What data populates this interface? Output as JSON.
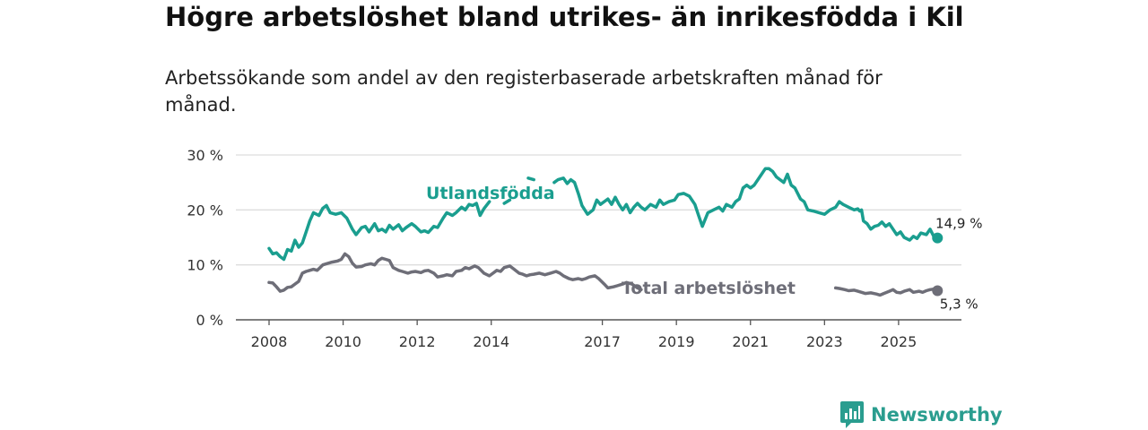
{
  "header": {
    "title": "Högre arbetslöshet bland utrikes- än inrikesfödda i Kil",
    "subtitle": "Arbetssökande som andel av den registerbaserade arbetskraften månad för månad."
  },
  "brand": {
    "name": "Newsworthy",
    "icon": "newsworthy-logo-icon"
  },
  "colors": {
    "foreign": "#1a9e8f",
    "total": "#6e6e78",
    "grid": "#dddddd",
    "axis": "#555555"
  },
  "chart_data": {
    "type": "line",
    "title": "Högre arbetslöshet bland utrikes- än inrikesfödda i Kil",
    "xlabel": "",
    "ylabel": "",
    "xlim": [
      2008.0,
      2025.85
    ],
    "ylim": [
      0,
      30
    ],
    "y_ticks": [
      0,
      10,
      20,
      30
    ],
    "y_tick_labels": [
      "0 %",
      "10 %",
      "20 %",
      "30 %"
    ],
    "x_ticks": [
      2008,
      2010,
      2012,
      2014,
      2017,
      2019,
      2021,
      2023,
      2025
    ],
    "x_tick_labels": [
      "2008",
      "2010",
      "2012",
      "2014",
      "2017",
      "2019",
      "2021",
      "2023",
      "2025"
    ],
    "grid": true,
    "legend": "inline labels",
    "series": [
      {
        "name": "Utlandsfödda",
        "label": "Utlandsfödda",
        "end_label": "14,9 %",
        "points": [
          [
            2008.0,
            13.0
          ],
          [
            2008.1,
            12.0
          ],
          [
            2008.2,
            12.2
          ],
          [
            2008.3,
            11.5
          ],
          [
            2008.4,
            11.0
          ],
          [
            2008.5,
            12.8
          ],
          [
            2008.6,
            12.5
          ],
          [
            2008.7,
            14.5
          ],
          [
            2008.8,
            13.2
          ],
          [
            2008.9,
            14.0
          ],
          [
            2009.0,
            16.0
          ],
          [
            2009.1,
            18.0
          ],
          [
            2009.2,
            19.5
          ],
          [
            2009.35,
            19.0
          ],
          [
            2009.45,
            20.3
          ],
          [
            2009.55,
            20.8
          ],
          [
            2009.65,
            19.5
          ],
          [
            2009.8,
            19.2
          ],
          [
            2009.95,
            19.5
          ],
          [
            2010.1,
            18.5
          ],
          [
            2010.25,
            16.5
          ],
          [
            2010.35,
            15.5
          ],
          [
            2010.5,
            16.8
          ],
          [
            2010.6,
            17.0
          ],
          [
            2010.7,
            16.0
          ],
          [
            2010.85,
            17.5
          ],
          [
            2010.95,
            16.2
          ],
          [
            2011.05,
            16.5
          ],
          [
            2011.15,
            16.0
          ],
          [
            2011.25,
            17.2
          ],
          [
            2011.35,
            16.5
          ],
          [
            2011.5,
            17.3
          ],
          [
            2011.6,
            16.2
          ],
          [
            2011.7,
            16.8
          ],
          [
            2011.85,
            17.5
          ],
          [
            2011.95,
            17.0
          ],
          [
            2012.1,
            16.0
          ],
          [
            2012.2,
            16.2
          ],
          [
            2012.3,
            15.9
          ],
          [
            2012.45,
            17.0
          ],
          [
            2012.55,
            16.8
          ],
          [
            2012.7,
            18.5
          ],
          [
            2012.8,
            19.5
          ],
          [
            2012.95,
            19.0
          ],
          [
            2013.05,
            19.5
          ],
          [
            2013.2,
            20.5
          ],
          [
            2013.3,
            20.0
          ],
          [
            2013.4,
            21.0
          ],
          [
            2013.5,
            20.8
          ],
          [
            2013.6,
            21.2
          ],
          [
            2013.7,
            19.0
          ],
          [
            2013.8,
            20.2
          ],
          [
            2013.95,
            21.5
          ]
        ],
        "segments": [
          [
            [
              2014.35,
              21.2
            ],
            [
              2014.5,
              21.8
            ]
          ],
          [
            [
              2015.0,
              25.8
            ],
            [
              2015.15,
              25.5
            ]
          ],
          [
            [
              2015.7,
              25.0
            ],
            [
              2015.8,
              25.5
            ],
            [
              2015.95,
              25.8
            ],
            [
              2016.05,
              24.8
            ],
            [
              2016.15,
              25.5
            ],
            [
              2016.25,
              25.0
            ],
            [
              2016.35,
              23.0
            ],
            [
              2016.45,
              20.8
            ],
            [
              2016.6,
              19.2
            ],
            [
              2016.75,
              20.0
            ],
            [
              2016.85,
              21.8
            ],
            [
              2016.95,
              21.0
            ],
            [
              2017.05,
              21.5
            ],
            [
              2017.15,
              22.0
            ],
            [
              2017.25,
              21.0
            ],
            [
              2017.35,
              22.3
            ],
            [
              2017.45,
              21.0
            ],
            [
              2017.55,
              20.0
            ],
            [
              2017.65,
              21.0
            ],
            [
              2017.75,
              19.5
            ],
            [
              2017.85,
              20.5
            ],
            [
              2017.95,
              21.2
            ],
            [
              2018.05,
              20.5
            ],
            [
              2018.15,
              20.0
            ],
            [
              2018.3,
              21.0
            ],
            [
              2018.45,
              20.5
            ],
            [
              2018.55,
              21.8
            ],
            [
              2018.65,
              21.0
            ],
            [
              2018.8,
              21.5
            ],
            [
              2018.95,
              21.8
            ],
            [
              2019.05,
              22.8
            ],
            [
              2019.2,
              23.0
            ],
            [
              2019.35,
              22.5
            ],
            [
              2019.5,
              21.0
            ],
            [
              2019.6,
              19.0
            ],
            [
              2019.7,
              17.0
            ],
            [
              2019.85,
              19.5
            ],
            [
              2020.0,
              20.0
            ],
            [
              2020.15,
              20.5
            ],
            [
              2020.25,
              19.8
            ],
            [
              2020.35,
              21.0
            ],
            [
              2020.5,
              20.5
            ],
            [
              2020.6,
              21.5
            ],
            [
              2020.7,
              22.0
            ],
            [
              2020.8,
              24.0
            ],
            [
              2020.9,
              24.5
            ],
            [
              2021.0,
              24.0
            ],
            [
              2021.1,
              24.5
            ],
            [
              2021.25,
              26.0
            ],
            [
              2021.4,
              27.5
            ],
            [
              2021.5,
              27.5
            ],
            [
              2021.6,
              27.0
            ],
            [
              2021.7,
              26.0
            ],
            [
              2021.8,
              25.5
            ],
            [
              2021.9,
              25.0
            ],
            [
              2022.0,
              26.5
            ],
            [
              2022.1,
              24.5
            ],
            [
              2022.2,
              24.0
            ],
            [
              2022.35,
              22.0
            ],
            [
              2022.45,
              21.5
            ],
            [
              2022.55,
              20.0
            ],
            [
              2022.7,
              19.8
            ],
            [
              2022.85,
              19.5
            ],
            [
              2023.0,
              19.2
            ],
            [
              2023.15,
              20.0
            ],
            [
              2023.3,
              20.5
            ],
            [
              2023.4,
              21.5
            ],
            [
              2023.5,
              21.0
            ],
            [
              2023.65,
              20.5
            ],
            [
              2023.8,
              20.0
            ],
            [
              2023.9,
              20.2
            ],
            [
              2023.95,
              19.8
            ],
            [
              2024.0,
              20.0
            ],
            [
              2024.05,
              18.0
            ],
            [
              2024.15,
              17.5
            ],
            [
              2024.25,
              16.5
            ],
            [
              2024.35,
              17.0
            ],
            [
              2024.45,
              17.2
            ],
            [
              2024.55,
              17.8
            ],
            [
              2024.65,
              17.0
            ],
            [
              2024.75,
              17.5
            ],
            [
              2024.85,
              16.5
            ],
            [
              2024.95,
              15.5
            ],
            [
              2025.05,
              16.0
            ],
            [
              2025.15,
              15.0
            ],
            [
              2025.3,
              14.5
            ],
            [
              2025.4,
              15.2
            ],
            [
              2025.5,
              14.8
            ],
            [
              2025.6,
              15.8
            ],
            [
              2025.75,
              15.5
            ],
            [
              2025.85,
              16.5
            ],
            [
              2025.95,
              15.2
            ],
            [
              2026.05,
              14.9
            ]
          ]
        ]
      },
      {
        "name": "Total arbetslöshet",
        "label": "Total arbetslöshet",
        "end_label": "5,3 %",
        "points": [
          [
            2008.0,
            6.8
          ],
          [
            2008.1,
            6.7
          ],
          [
            2008.2,
            6.0
          ],
          [
            2008.3,
            5.2
          ],
          [
            2008.4,
            5.4
          ],
          [
            2008.5,
            5.9
          ],
          [
            2008.6,
            6.0
          ],
          [
            2008.7,
            6.5
          ],
          [
            2008.8,
            7.0
          ],
          [
            2008.9,
            8.5
          ],
          [
            2009.0,
            8.8
          ],
          [
            2009.1,
            9.0
          ],
          [
            2009.2,
            9.2
          ],
          [
            2009.3,
            9.0
          ],
          [
            2009.45,
            10.0
          ],
          [
            2009.55,
            10.2
          ],
          [
            2009.7,
            10.5
          ],
          [
            2009.85,
            10.7
          ],
          [
            2009.95,
            11.0
          ],
          [
            2010.05,
            12.0
          ],
          [
            2010.15,
            11.5
          ],
          [
            2010.25,
            10.3
          ],
          [
            2010.35,
            9.6
          ],
          [
            2010.5,
            9.7
          ],
          [
            2010.6,
            10.0
          ],
          [
            2010.75,
            10.2
          ],
          [
            2010.85,
            10.0
          ],
          [
            2010.95,
            10.8
          ],
          [
            2011.05,
            11.2
          ],
          [
            2011.15,
            11.0
          ],
          [
            2011.25,
            10.8
          ],
          [
            2011.35,
            9.5
          ],
          [
            2011.5,
            9.0
          ],
          [
            2011.6,
            8.8
          ],
          [
            2011.75,
            8.5
          ],
          [
            2011.85,
            8.7
          ],
          [
            2011.95,
            8.8
          ],
          [
            2012.1,
            8.6
          ],
          [
            2012.2,
            8.9
          ],
          [
            2012.3,
            9.0
          ],
          [
            2012.45,
            8.5
          ],
          [
            2012.55,
            7.8
          ],
          [
            2012.7,
            8.0
          ],
          [
            2012.8,
            8.2
          ],
          [
            2012.95,
            8.0
          ],
          [
            2013.05,
            8.8
          ],
          [
            2013.2,
            9.0
          ],
          [
            2013.3,
            9.5
          ],
          [
            2013.4,
            9.3
          ],
          [
            2013.55,
            9.8
          ],
          [
            2013.65,
            9.5
          ],
          [
            2013.8,
            8.5
          ],
          [
            2013.95,
            8.0
          ],
          [
            2014.05,
            8.5
          ],
          [
            2014.15,
            9.0
          ],
          [
            2014.25,
            8.8
          ],
          [
            2014.35,
            9.5
          ],
          [
            2014.5,
            9.8
          ],
          [
            2014.6,
            9.3
          ],
          [
            2014.75,
            8.5
          ],
          [
            2014.85,
            8.3
          ],
          [
            2014.95,
            8.0
          ],
          [
            2015.05,
            8.2
          ],
          [
            2015.15,
            8.3
          ],
          [
            2015.3,
            8.5
          ],
          [
            2015.45,
            8.2
          ],
          [
            2015.6,
            8.5
          ],
          [
            2015.75,
            8.8
          ],
          [
            2015.85,
            8.5
          ],
          [
            2015.95,
            8.0
          ],
          [
            2016.1,
            7.5
          ],
          [
            2016.2,
            7.3
          ],
          [
            2016.35,
            7.5
          ],
          [
            2016.45,
            7.3
          ],
          [
            2016.55,
            7.5
          ],
          [
            2016.65,
            7.8
          ],
          [
            2016.8,
            8.0
          ],
          [
            2016.9,
            7.5
          ],
          [
            2017.05,
            6.5
          ],
          [
            2017.15,
            5.8
          ],
          [
            2017.3,
            6.0
          ],
          [
            2017.4,
            6.2
          ],
          [
            2017.55,
            6.5
          ],
          [
            2017.65,
            6.8
          ],
          [
            2017.8,
            6.5
          ],
          [
            2017.95,
            5.8
          ],
          [
            2018.05,
            5.5
          ]
        ],
        "segments": [
          [
            [
              2023.3,
              5.8
            ],
            [
              2023.4,
              5.7
            ],
            [
              2023.55,
              5.5
            ],
            [
              2023.65,
              5.3
            ],
            [
              2023.8,
              5.4
            ],
            [
              2023.9,
              5.2
            ],
            [
              2024.0,
              5.0
            ],
            [
              2024.1,
              4.8
            ],
            [
              2024.25,
              4.9
            ],
            [
              2024.4,
              4.7
            ],
            [
              2024.5,
              4.5
            ],
            [
              2024.6,
              4.8
            ],
            [
              2024.75,
              5.2
            ],
            [
              2024.85,
              5.5
            ],
            [
              2024.95,
              5.0
            ],
            [
              2025.05,
              4.9
            ],
            [
              2025.15,
              5.2
            ],
            [
              2025.3,
              5.5
            ],
            [
              2025.4,
              5.0
            ],
            [
              2025.55,
              5.2
            ],
            [
              2025.65,
              5.0
            ],
            [
              2025.75,
              5.3
            ],
            [
              2025.85,
              5.5
            ],
            [
              2025.95,
              5.6
            ],
            [
              2026.05,
              5.3
            ]
          ]
        ]
      }
    ]
  }
}
